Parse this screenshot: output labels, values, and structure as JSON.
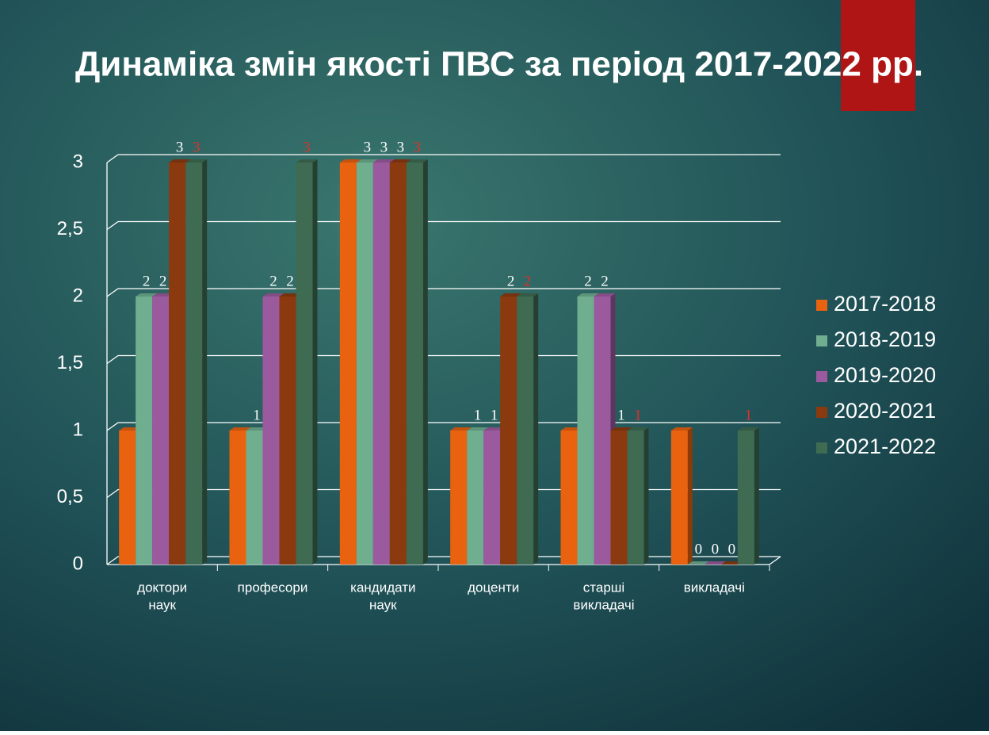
{
  "chart_data": {
    "type": "bar3d",
    "title": "Динаміка змін якості ПВС за період 2017-2022 рр.",
    "categories": [
      [
        "доктори",
        "наук"
      ],
      [
        "професори"
      ],
      [
        "кандидати",
        "наук"
      ],
      [
        "доценти"
      ],
      [
        "старші",
        "викладачі"
      ],
      [
        "викладачі"
      ]
    ],
    "series": [
      {
        "name": "2017-2018",
        "color": "#e8620f",
        "values": [
          1,
          1,
          3,
          1,
          1,
          1
        ],
        "data_labels": false
      },
      {
        "name": "2018-2019",
        "color": "#6fae8f",
        "values": [
          2,
          1,
          3,
          1,
          2,
          0
        ],
        "data_labels": true,
        "label_color": "#ffffff"
      },
      {
        "name": "2019-2020",
        "color": "#9b5a9e",
        "values": [
          2,
          2,
          3,
          1,
          2,
          0
        ],
        "data_labels": true,
        "label_color": "#ffffff"
      },
      {
        "name": "2020-2021",
        "color": "#8b3a0f",
        "values": [
          3,
          2,
          3,
          2,
          1,
          0
        ],
        "data_labels": true,
        "label_color": "#ffffff"
      },
      {
        "name": "2021-2022",
        "color": "#3e6b52",
        "values": [
          3,
          3,
          3,
          2,
          1,
          1
        ],
        "data_labels": true,
        "label_color": "#e0302a"
      }
    ],
    "ylim": [
      0,
      3
    ],
    "yticks": [
      0,
      {
        "value": 0.5,
        "label": "0,5"
      },
      1,
      {
        "value": 1.5,
        "label": "1,5"
      },
      2,
      {
        "value": 2.5,
        "label": "2,5"
      },
      3
    ],
    "grid": true,
    "legend": "right"
  }
}
